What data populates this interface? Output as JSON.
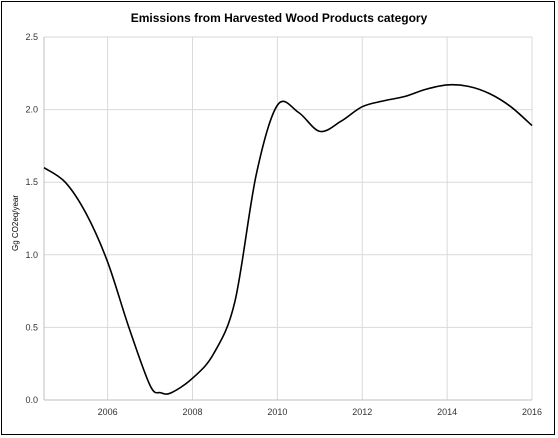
{
  "chart_data": {
    "type": "line",
    "title": "Emissions from Harvested Wood Products category",
    "xlabel": "",
    "ylabel": "Gg CO2eq/year",
    "xlim": [
      2004.5,
      2016
    ],
    "ylim": [
      0,
      2.5
    ],
    "grid": true,
    "legend": "none",
    "x_ticks": [
      "2006",
      "2008",
      "2010",
      "2012",
      "2014",
      "2016"
    ],
    "y_ticks": [
      "0.0",
      "0.5",
      "1.0",
      "1.5",
      "2.0",
      "2.5"
    ],
    "series": [
      {
        "name": "",
        "color": "#000000",
        "x": [
          2004.5,
          2005.0,
          2005.5,
          2006.0,
          2006.5,
          2007.0,
          2007.25,
          2007.5,
          2008.0,
          2008.5,
          2009.0,
          2009.5,
          2010.0,
          2010.5,
          2011.0,
          2011.5,
          2012.0,
          2012.5,
          2013.0,
          2013.5,
          2014.0,
          2014.5,
          2015.0,
          2015.5,
          2016.0
        ],
        "y": [
          1.6,
          1.5,
          1.28,
          0.95,
          0.5,
          0.1,
          0.05,
          0.05,
          0.15,
          0.32,
          0.68,
          1.55,
          2.03,
          1.98,
          1.85,
          1.92,
          2.02,
          2.06,
          2.09,
          2.14,
          2.17,
          2.16,
          2.11,
          2.02,
          1.89
        ]
      }
    ]
  }
}
